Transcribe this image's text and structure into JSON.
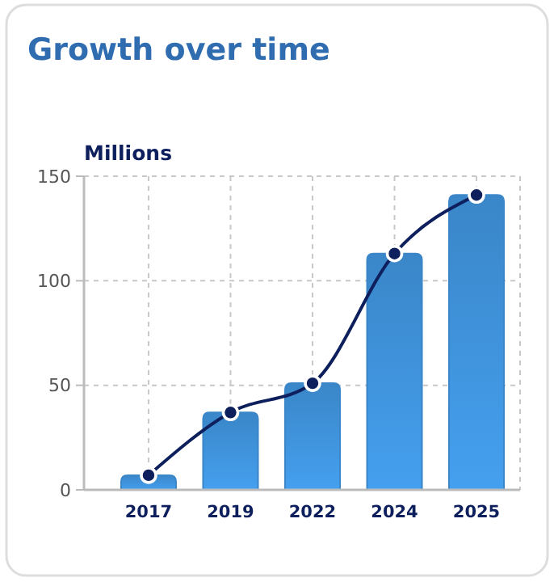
{
  "chart_data": {
    "type": "bar",
    "title": "Growth over time",
    "ylabel": "Millions",
    "categories": [
      "2017",
      "2019",
      "2022",
      "2024",
      "2025"
    ],
    "series": [
      {
        "color": "#3a86c8",
        "values": [
          7,
          37,
          51,
          113,
          141
        ]
      },
      {
        "type": "line",
        "color": "#0d1f5c",
        "values": [
          7,
          37,
          51,
          113,
          141
        ],
        "marker": "circle"
      }
    ],
    "ylim": [
      0,
      150
    ],
    "yticks": [
      0,
      50,
      100,
      150
    ],
    "grid": true
  }
}
